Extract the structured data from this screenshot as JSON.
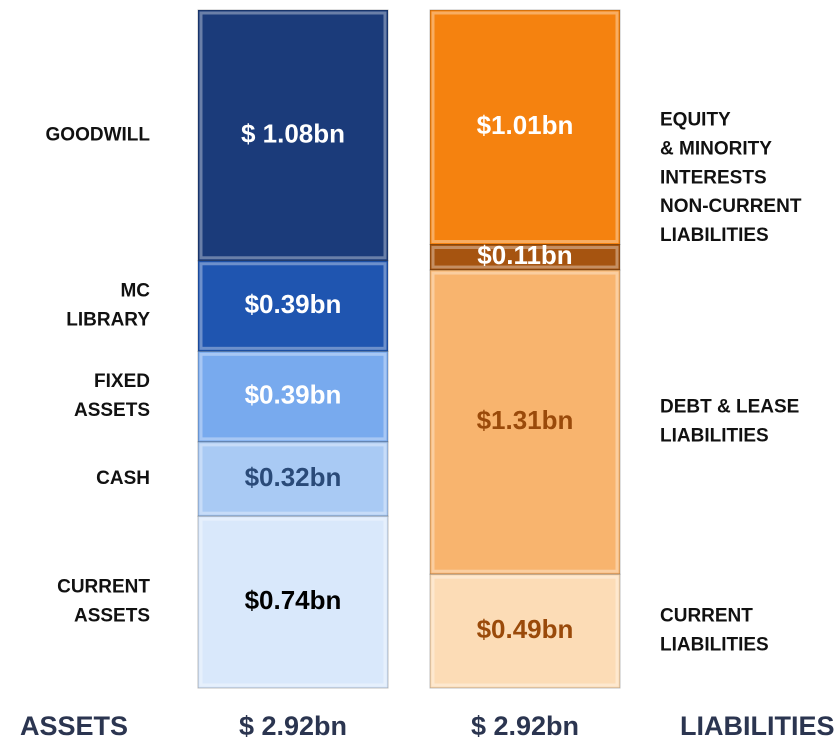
{
  "chart_data": {
    "type": "stacked_bar",
    "columns": [
      {
        "name": "ASSETS",
        "total": 2.92,
        "total_label": "$ 2.92bn",
        "label_side": "left",
        "segments": [
          {
            "label": [
              "GOODWILL"
            ],
            "value": 1.08,
            "value_label": "$ 1.08bn",
            "color": "#1b3b7a",
            "text_color": "#ffffff"
          },
          {
            "label": [
              "MC",
              "LIBRARY"
            ],
            "value": 0.39,
            "value_label": "$0.39bn",
            "color": "#1f55b0",
            "text_color": "#ffffff"
          },
          {
            "label": [
              "FIXED",
              "ASSETS"
            ],
            "value": 0.39,
            "value_label": "$0.39bn",
            "color": "#78aaee",
            "text_color": "#ffffff"
          },
          {
            "label": [
              "CASH"
            ],
            "value": 0.32,
            "value_label": "$0.32bn",
            "color": "#a9caf4",
            "text_color": "#2a4a78"
          },
          {
            "label": [
              "CURRENT",
              "ASSETS"
            ],
            "value": 0.74,
            "value_label": "$0.74bn",
            "color": "#d9e8fb",
            "text_color": "#000000"
          }
        ]
      },
      {
        "name": "LIABILITIES",
        "total": 2.92,
        "total_label": "$ 2.92bn",
        "label_side": "right",
        "segments": [
          {
            "label": [
              "EQUITY",
              "& MINORITY",
              "INTERESTS"
            ],
            "value": 1.01,
            "value_label": "$1.01bn",
            "color": "#f5820f",
            "text_color": "#ffffff"
          },
          {
            "label": [
              "NON-CURRENT",
              "LIABILITIES"
            ],
            "value": 0.11,
            "value_label": "$0.11bn",
            "color": "#a65410",
            "text_color": "#ffffff"
          },
          {
            "label": [
              "DEBT & LEASE",
              "LIABILITIES"
            ],
            "value": 1.31,
            "value_label": "$1.31bn",
            "color": "#f8b46e",
            "text_color": "#9a4a0a"
          },
          {
            "label": [
              "CURRENT",
              "LIABILITIES"
            ],
            "value": 0.49,
            "value_label": "$0.49bn",
            "color": "#fcdcb6",
            "text_color": "#9a4a0a"
          }
        ]
      }
    ]
  }
}
